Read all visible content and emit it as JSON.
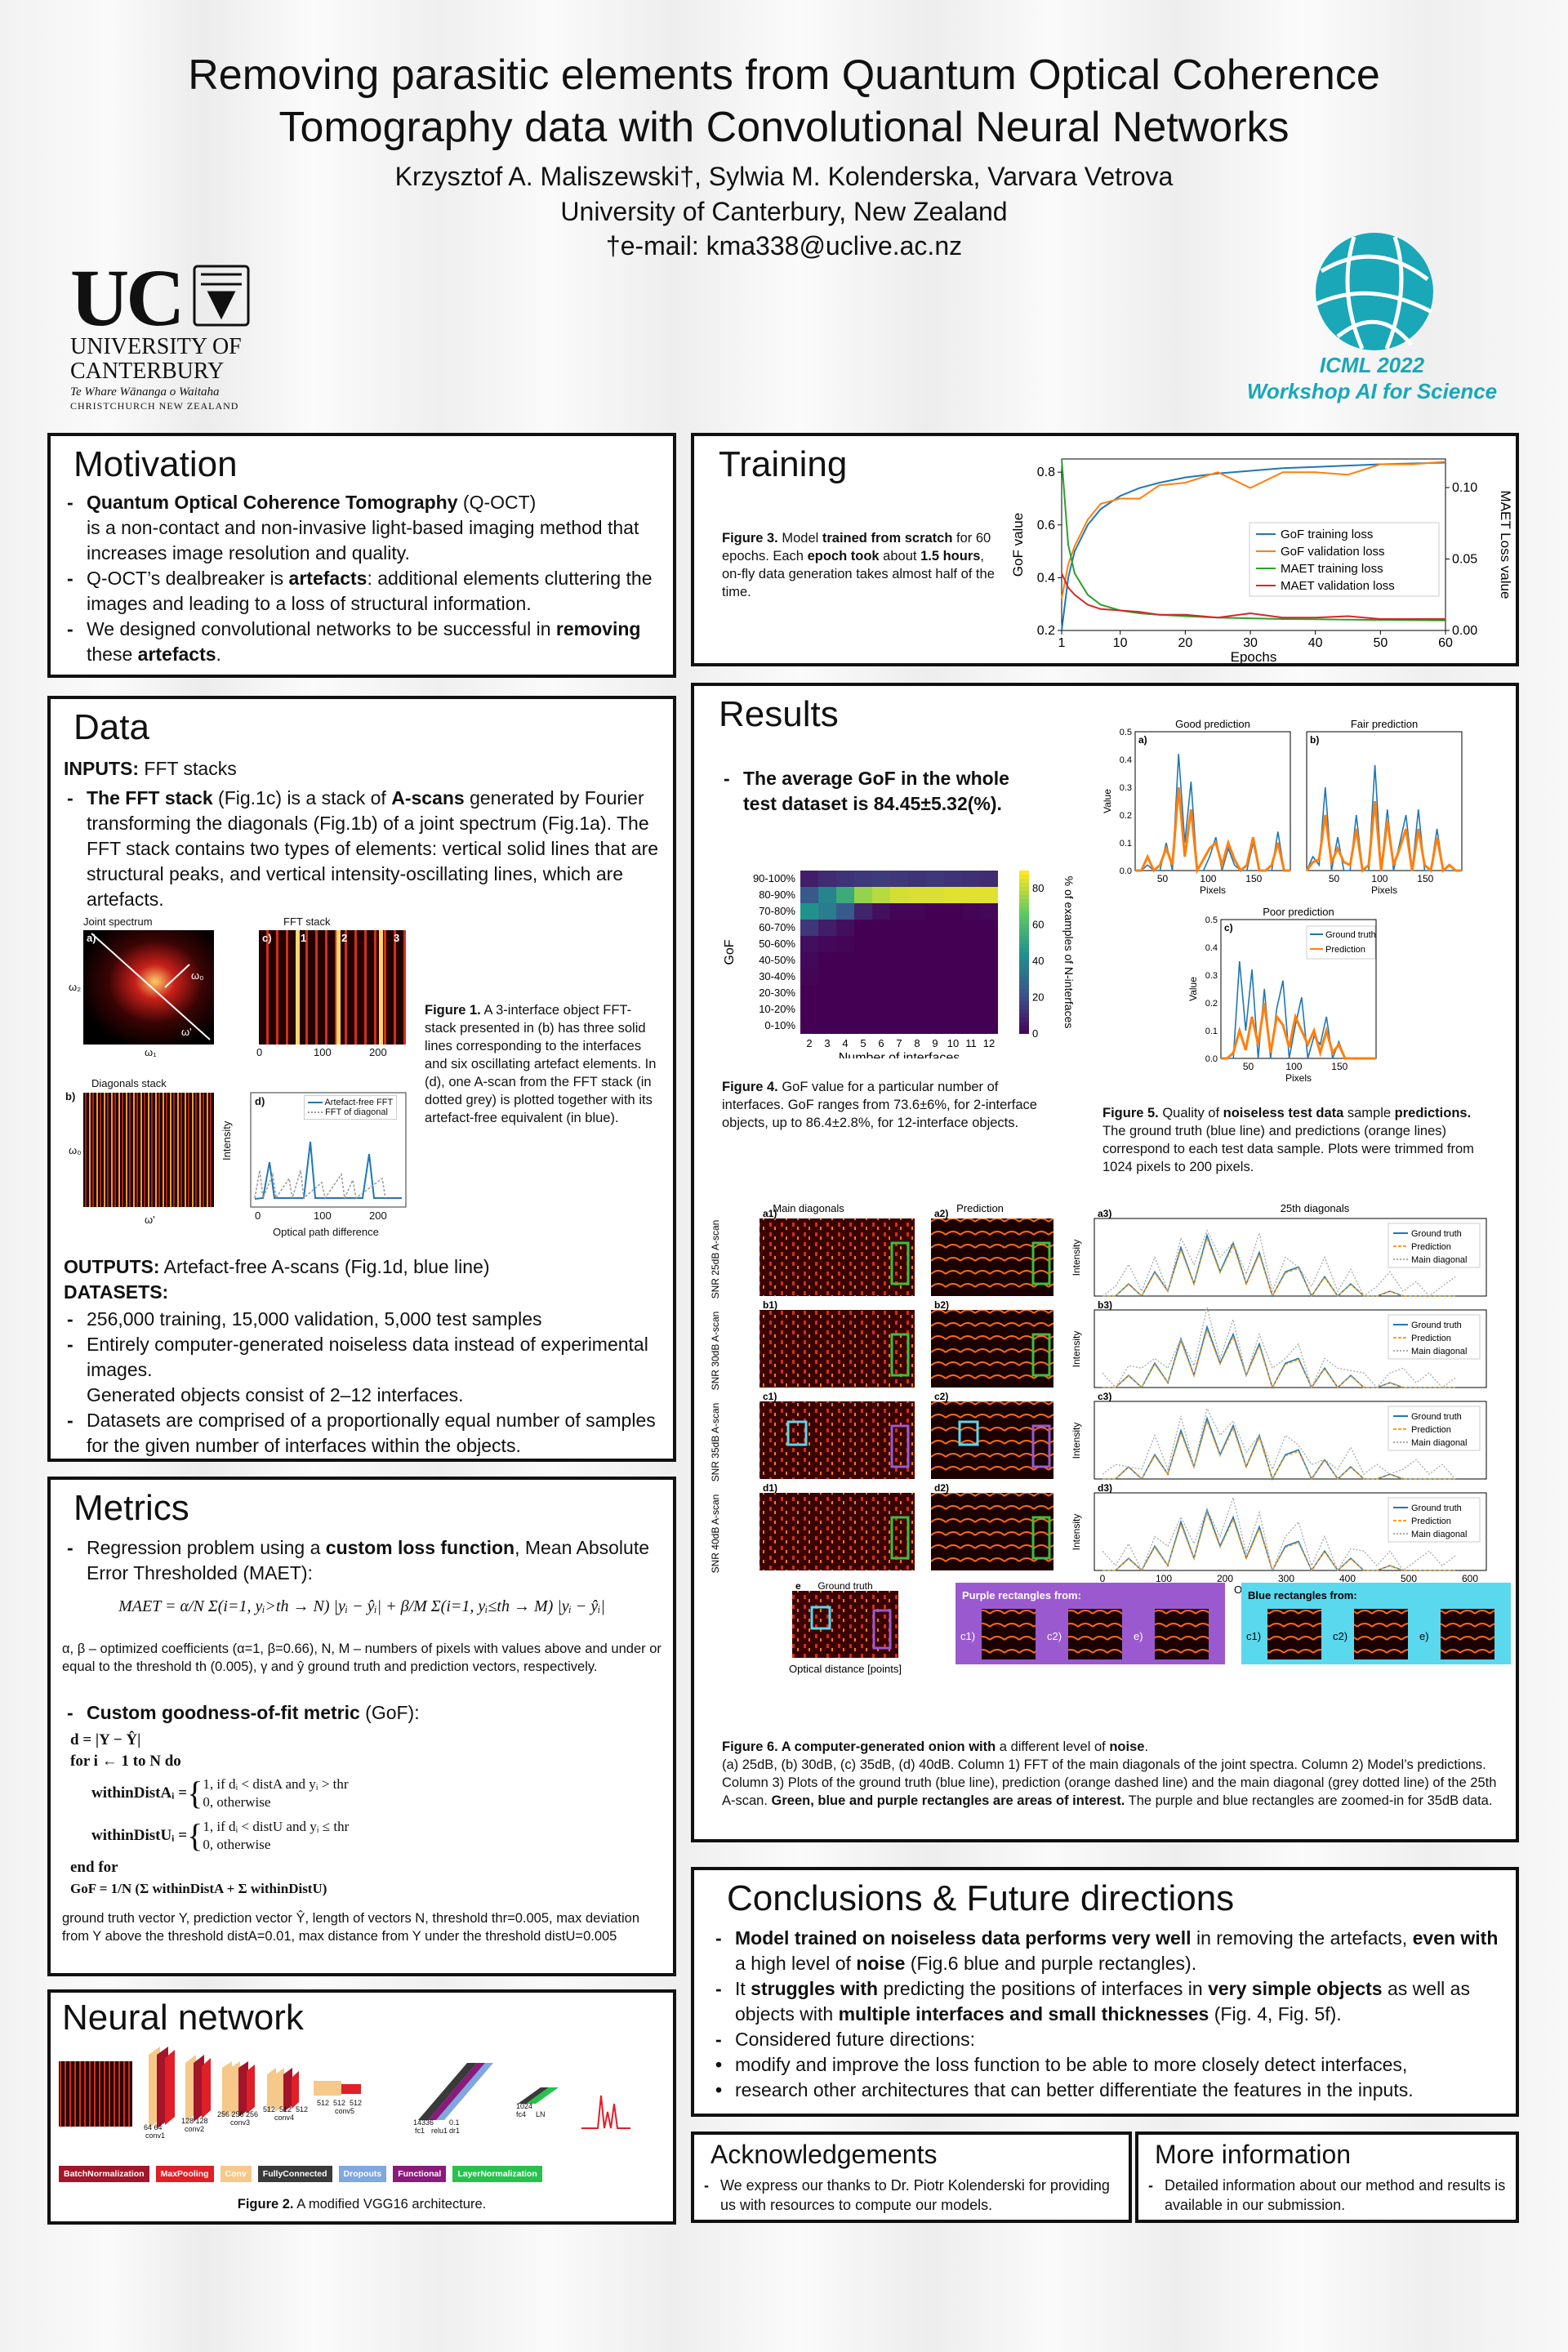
{
  "header": {
    "title_1": "Removing parasitic elements from Quantum Optical Coherence",
    "title_2": "Tomography data with Convolutional Neural Networks",
    "authors": "Krzysztof A. Maliszewski†, Sylwia M. Kolenderska, Varvara Vetrova",
    "affiliation": "University of Canterbury, New Zealand",
    "email": "†e-mail: kma338@uclive.ac.nz"
  },
  "logo_uc": {
    "mark": "UC",
    "name_1": "UNIVERSITY OF",
    "name_2": "CANTERBURY",
    "maori": "Te Whare Wānanga o Waitaha",
    "city": "CHRISTCHURCH NEW ZEALAND"
  },
  "logo_icml": {
    "line1": "ICML 2022",
    "line2": "Workshop AI for Science",
    "color": "#1aa7b8"
  },
  "motivation": {
    "title": "Motivation",
    "b1_bold": "Quantum Optical Coherence Tomography",
    "b1_rest": " (Q-OCT)",
    "b1_cont": "is a non-contact and non-invasive light-based imaging method that increases image resolution and quality.",
    "b2_pre": "Q-OCT’s dealbreaker is ",
    "b2_bold": "artefacts",
    "b2_rest": ": additional elements cluttering the images and leading to a loss of structural information.",
    "b3_pre": "We designed convolutional networks to be successful in ",
    "b3_bold1": "removing",
    "b3_mid": " these ",
    "b3_bold2": "artefacts",
    "b3_end": "."
  },
  "data": {
    "title": "Data",
    "inputs_label": "INPUTS:",
    "inputs_val": " FFT stacks",
    "b1_bold": "The FFT stack",
    "b1_a": " (Fig.1c) is a stack of ",
    "b1_bold2": "A-scans",
    "b1_b": " generated by Fourier transforming the diagonals (Fig.1b) of a joint spectrum (Fig.1a). The FFT stack contains two types of elements: vertical solid lines that are structural peaks, and vertical intensity-oscillating lines, which are artefacts.",
    "fig_joint": "Joint spectrum",
    "fig_fft": "FFT stack",
    "fig_diag": "Diagonals stack",
    "lbl_a": "a)",
    "lbl_b": "b)",
    "lbl_c": "c)",
    "lbl_d": "d)",
    "n1": "1",
    "n2": "2",
    "n3": "3",
    "w0": "ω₀",
    "wprime": "ω'",
    "w1": "ω₁",
    "w2": "ω₂",
    "tick0": "0",
    "tick100": "100",
    "tick200": "200",
    "intensity": "Intensity",
    "xlabel_d": "Optical path difference",
    "legend_1": "Artefact-free FFT",
    "legend_2": "FFT of diagonal",
    "fig1_cap_bold": "Figure 1.",
    "fig1_cap": " A 3-interface object FFT-stack presented in (b) has three solid lines corresponding to the interfaces and six oscillating artefact elements. In (d), one A-scan from the FFT stack (in dotted grey) is plotted together with its artefact-free equivalent (in blue).",
    "outputs_label": "OUTPUTS:",
    "outputs_val": " Artefact-free A-scans (Fig.1d, blue line)",
    "datasets_label": "DATASETS:",
    "d1": "256,000 training, 15,000 validation, 5,000 test samples",
    "d2": "Entirely computer-generated noiseless data instead of experimental images.",
    "d2b": "Generated objects consist of 2–12 interfaces.",
    "d3": "Datasets are comprised of a proportionally equal number of samples for the given number of interfaces within the objects."
  },
  "metrics": {
    "title": "Metrics",
    "b1_pre": "Regression problem using a ",
    "b1_bold": "custom loss function",
    "b1_rest": ", Mean Absolute Error Thresholded (MAET):",
    "formula": "MAET = α/N Σ(i=1, yᵢ>th → N) |yᵢ − ŷᵢ| + β/M Σ(i=1, yᵢ≤th → M) |yᵢ − ŷᵢ|",
    "explain": "α, β – optimized coefficients (α=1, β=0.66), N, M – numbers of pixels with values above and under or equal to the threshold th (0.005), γ and ŷ ground truth and prediction vectors, respectively.",
    "b2_bold": "Custom goodness-of-fit metric",
    "b2_rest": " (GoF):",
    "alg1": "d = |Y − Ŷ|",
    "alg2": "for i ← 1 to N do",
    "alg3a": "withinDistAᵢ = ",
    "alg3b": "1, if dᵢ < distA and yᵢ > thr",
    "alg3c": "0,                      otherwise",
    "alg4a": "withinDistUᵢ = ",
    "alg4b": "1, if dᵢ < distU and yᵢ ≤ thr",
    "alg4c": "0,                      otherwise",
    "alg5": "end for",
    "alg6": "GoF = 1/N (Σ withinDistA + Σ withinDistU)",
    "footer": "ground truth vector Y, prediction vector Ŷ, length of vectors N, threshold thr=0.005, max deviation from Y above the threshold distA=0.01, max distance from Y under the threshold distU=0.005"
  },
  "nn": {
    "title": "Neural network",
    "labels": [
      "64 64",
      "conv1",
      "128 128",
      "conv2",
      "256 256 256",
      "conv3",
      "512",
      "512",
      "512",
      "conv4",
      "512",
      "512",
      "512",
      "conv5",
      "14336",
      "fc1",
      "relu1",
      "0.1",
      "dr1",
      "1024",
      "fc4",
      "LN"
    ],
    "legend": [
      {
        "label": "BatchNormalization",
        "color": "#a3152a"
      },
      {
        "label": "MaxPooling",
        "color": "#e01f26"
      },
      {
        "label": "Conv",
        "color": "#f6c98a"
      },
      {
        "label": "FullyConnected",
        "color": "#3a3a3a"
      },
      {
        "label": "Dropouts",
        "color": "#7fa7e0"
      },
      {
        "label": "Functional",
        "color": "#8a1a7c"
      },
      {
        "label": "LayerNormalization",
        "color": "#27c24c"
      }
    ],
    "cap_bold": "Figure 2.",
    "cap": " A modified VGG16 architecture."
  },
  "training": {
    "title": "Training",
    "cap_bold": "Figure 3.",
    "cap_a": " Model ",
    "cap_b": "trained from scratch",
    "cap_c": " for 60 epochs. Each ",
    "cap_d": "epoch took",
    "cap_e": " about ",
    "cap_f": "1.5 hours",
    "cap_g": ", on-fly data generation takes almost half of the time."
  },
  "results": {
    "title": "Results",
    "avg_bold": "The average GoF in the whole test dataset is 84.45±5.32(%).",
    "fig4_cap_bold": "Figure 4.",
    "fig4_cap": " GoF value for a particular number of interfaces. GoF ranges from 73.6±6%, for 2-interface objects, up to 86.4±2.8%, for 12-interface objects.",
    "fig5_title_good": "Good prediction",
    "fig5_title_fair": "Fair prediction",
    "fig5_title_poor": "Poor prediction",
    "fig5_a": "a)",
    "fig5_b": "b)",
    "fig5_c": "c)",
    "fig5_xlabel": "Pixels",
    "fig5_ylabel": "Value",
    "fig5_leg1": "Ground truth",
    "fig5_leg2": "Prediction",
    "fig5_cap_bold": "Figure 5.",
    "fig5_cap_a": " Quality of ",
    "fig5_cap_b": "noiseless test data",
    "fig5_cap_c": " sample ",
    "fig5_cap_d": "predictions.",
    "fig5_cap_e": " The ground truth (blue line) and predictions (orange lines) correspond to each test data sample. Plots were trimmed from 1024 pixels to 200 pixels.",
    "fig6_col1": "Main diagonals",
    "fig6_col2": "Prediction",
    "fig6_col3": "25th diagonals",
    "fig6_rows": [
      "SNR 25dB A-scan",
      "SNR 30dB A-scan",
      "SNR 35dB A-scan",
      "SNR 40dB A-scan"
    ],
    "fig6_row_labels": [
      [
        "a1)",
        "a2)",
        "a3)"
      ],
      [
        "b1)",
        "b2)",
        "b3)"
      ],
      [
        "c1)",
        "c2)",
        "c3)"
      ],
      [
        "d1)",
        "d2)",
        "d3)"
      ]
    ],
    "fig6_e": "e",
    "fig6_gt": "Ground truth",
    "fig6_xlabel": "Optical distance [points]",
    "fig6_leg": [
      "Ground truth",
      "Prediction",
      "Main diagonal"
    ],
    "fig6_intensity": "Intensity",
    "purple_title": "Purple rectangles from:",
    "blue_title": "Blue rectangles from:",
    "zoom_labels": [
      "c1)",
      "c2)",
      "e)"
    ],
    "fig6_cap_bold": "Figure 6. A computer-generated onion with",
    "fig6_cap_a": " a different level of ",
    "fig6_cap_b": "noise",
    "fig6_cap_c": ".",
    "fig6_cap_2": "(a) 25dB, (b) 30dB, (c) 35dB, (d) 40dB. Column 1) FFT of the main diagonals of the joint spectra. Column 2) Model’s predictions. Column 3) Plots of the ground truth (blue line), prediction (orange dashed line) and the main diagonal (grey dotted line) of the 25th A-scan. ",
    "fig6_cap_3": "Green, blue and purple rectangles are areas of interest.",
    "fig6_cap_4": " The purple and blue rectangles are zoomed-in for 35dB data."
  },
  "conclusions": {
    "title": "Conclusions & Future directions",
    "b1_bold": "Model trained on noiseless data performs very well",
    "b1_a": " in removing the artefacts, ",
    "b1_bold2": "even with",
    "b1_b": " a ",
    "b1_c": "high level of ",
    "b1_bold3": "noise",
    "b1_d": " (Fig.6 blue and purple rectangles).",
    "b2_a": "It ",
    "b2_bold": "struggles with",
    "b2_b": " predicting the positions of interfaces in ",
    "b2_bold2": "very simple objects",
    "b2_c": " as well as objects with ",
    "b2_bold3": "multiple interfaces and small thicknesses",
    "b2_d": " (Fig. 4, Fig. 5f).",
    "b3": "Considered future directions:",
    "d1": "modify and improve the loss function to be able to more closely detect interfaces,",
    "d2": "research other architectures that can better differentiate the features in the inputs."
  },
  "ack": {
    "title": "Acknowledgements",
    "text": "We express our thanks to Dr. Piotr Kolenderski for providing us with resources to compute our models."
  },
  "more": {
    "title": "More information",
    "text": "Detailed information about our method and results is available in our submission."
  },
  "chart_data": [
    {
      "id": "training",
      "type": "line",
      "xlabel": "Epochs",
      "ylabel": "GoF value",
      "y2label": "MAET Loss value",
      "xlim": [
        1,
        60
      ],
      "ylim": [
        0.2,
        0.85
      ],
      "y2lim": [
        0,
        0.12
      ],
      "xticks": [
        1,
        10,
        20,
        30,
        40,
        50,
        60
      ],
      "yticks": [
        0.2,
        0.4,
        0.6,
        0.8
      ],
      "y2ticks": [
        0.0,
        0.05,
        0.1
      ],
      "legend_position": "center-right",
      "x": [
        1,
        2,
        3,
        5,
        7,
        10,
        13,
        16,
        20,
        25,
        30,
        35,
        40,
        45,
        50,
        55,
        60
      ],
      "series": [
        {
          "name": "GoF training loss",
          "color": "#1f77b4",
          "axis": "left",
          "values": [
            0.2,
            0.4,
            0.5,
            0.6,
            0.66,
            0.71,
            0.74,
            0.76,
            0.78,
            0.795,
            0.805,
            0.815,
            0.82,
            0.825,
            0.83,
            0.833,
            0.836
          ]
        },
        {
          "name": "GoF validation loss",
          "color": "#ff7f0e",
          "axis": "left",
          "values": [
            0.32,
            0.45,
            0.52,
            0.62,
            0.68,
            0.7,
            0.7,
            0.75,
            0.76,
            0.8,
            0.74,
            0.8,
            0.8,
            0.79,
            0.83,
            0.83,
            0.84
          ]
        },
        {
          "name": "MAET training loss",
          "color": "#2ca02c",
          "axis": "right",
          "values": [
            0.12,
            0.06,
            0.04,
            0.025,
            0.018,
            0.014,
            0.012,
            0.011,
            0.01,
            0.009,
            0.0085,
            0.008,
            0.0078,
            0.0076,
            0.0074,
            0.0072,
            0.007
          ]
        },
        {
          "name": "MAET validation loss",
          "color": "#d62728",
          "axis": "right",
          "values": [
            0.04,
            0.03,
            0.025,
            0.018,
            0.015,
            0.014,
            0.013,
            0.011,
            0.011,
            0.009,
            0.012,
            0.009,
            0.009,
            0.01,
            0.008,
            0.008,
            0.008
          ]
        }
      ]
    },
    {
      "id": "heatmap",
      "type": "heatmap",
      "xlabel": "Number of interfaces",
      "ylabel": "GoF",
      "colorbar_label": "% of examples of N-interfaces",
      "colorbar_ticks": [
        0,
        20,
        40,
        60,
        80
      ],
      "x": [
        2,
        3,
        4,
        5,
        6,
        7,
        8,
        9,
        10,
        11,
        12
      ],
      "y": [
        "90-100%",
        "80-90%",
        "70-80%",
        "60-70%",
        "50-60%",
        "40-50%",
        "30-40%",
        "20-30%",
        "10-20%",
        "0-10%"
      ],
      "values": [
        [
          8,
          12,
          14,
          15,
          16,
          15,
          14,
          15,
          14,
          13,
          12
        ],
        [
          25,
          40,
          55,
          75,
          80,
          84,
          85,
          85,
          86,
          86,
          86
        ],
        [
          45,
          38,
          25,
          10,
          4,
          1,
          1,
          0,
          0,
          1,
          2
        ],
        [
          15,
          8,
          4,
          0,
          0,
          0,
          0,
          0,
          0,
          0,
          0
        ],
        [
          4,
          2,
          1,
          0,
          0,
          0,
          0,
          0,
          0,
          0,
          0
        ],
        [
          2,
          0,
          0,
          0,
          0,
          0,
          0,
          0,
          0,
          0,
          0
        ],
        [
          1,
          0,
          0,
          0,
          0,
          0,
          0,
          0,
          0,
          0,
          0
        ],
        [
          0,
          0,
          0,
          0,
          0,
          0,
          0,
          0,
          0,
          0,
          0
        ],
        [
          0,
          0,
          0,
          0,
          0,
          0,
          0,
          0,
          0,
          0,
          0
        ],
        [
          0,
          0,
          0,
          0,
          0,
          0,
          0,
          0,
          0,
          0,
          0
        ]
      ]
    },
    {
      "id": "fig5",
      "type": "line",
      "xticks": [
        50,
        100,
        150
      ],
      "yticks": [
        0.0,
        0.1,
        0.2,
        0.3,
        0.4,
        0.5
      ],
      "series": [
        {
          "name": "Ground truth",
          "color": "#1f77b4"
        },
        {
          "name": "Prediction",
          "color": "#ff7f0e"
        }
      ]
    },
    {
      "id": "fig6",
      "type": "line",
      "xlabel": "Optical distance [points]",
      "ylabel": "Intensity",
      "xticks": [
        0,
        100,
        200,
        300,
        400,
        500,
        600
      ],
      "yticks": [
        0.0,
        0.1,
        0.2,
        0.3
      ],
      "series": [
        {
          "name": "Ground truth",
          "color": "#1f77b4"
        },
        {
          "name": "Prediction",
          "color": "#ff9f1a"
        },
        {
          "name": "Main diagonal",
          "color": "#aaaaaa"
        }
      ]
    }
  ]
}
